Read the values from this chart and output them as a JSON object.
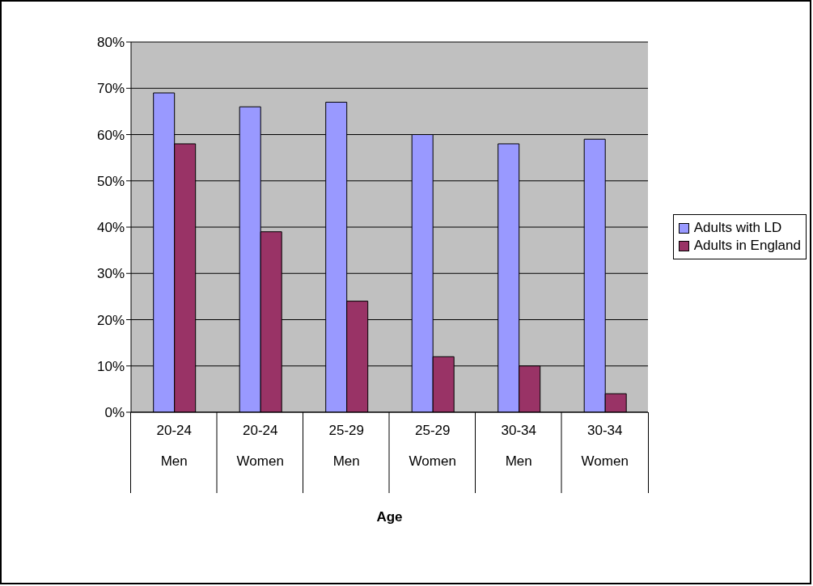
{
  "chart_data": {
    "type": "bar",
    "xlabel": "Age",
    "categories": [
      "20-24 Men",
      "20-24 Women",
      "25-29 Men",
      "25-29 Women",
      "30-34 Men",
      "30-34 Women"
    ],
    "series": [
      {
        "name": "Adults with LD",
        "color": "#9999ff",
        "values": [
          69,
          66,
          67,
          60,
          58,
          59
        ]
      },
      {
        "name": "Adults in England",
        "color": "#993366",
        "values": [
          58,
          39,
          24,
          12,
          10,
          4
        ]
      }
    ],
    "ylim": [
      0,
      80
    ],
    "yticks": [
      {
        "value": 0,
        "label": "0%"
      },
      {
        "value": 10,
        "label": "10%"
      },
      {
        "value": 20,
        "label": "20%"
      },
      {
        "value": 30,
        "label": "30%"
      },
      {
        "value": 40,
        "label": "40%"
      },
      {
        "value": 50,
        "label": "50%"
      },
      {
        "value": 60,
        "label": "60%"
      },
      {
        "value": 70,
        "label": "70%"
      },
      {
        "value": 80,
        "label": "80%"
      }
    ],
    "grid": "y",
    "legend": "right"
  }
}
